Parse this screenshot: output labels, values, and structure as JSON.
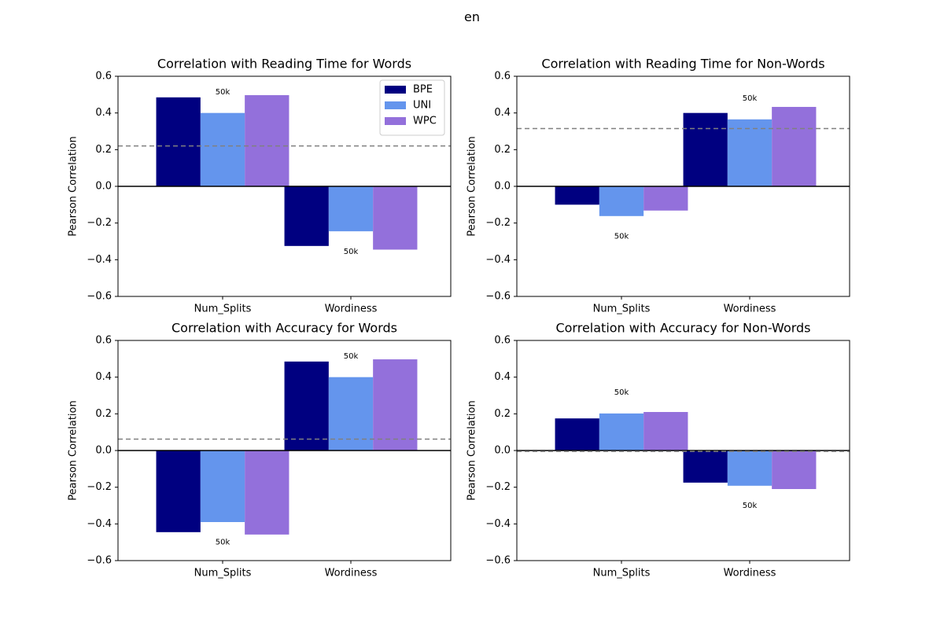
{
  "figure": {
    "suptitle": "en"
  },
  "chart_data": [
    {
      "type": "bar",
      "title": "Correlation with Reading Time for Words",
      "ylabel": "Pearson Correlation",
      "categories": [
        "Num_Splits",
        "Wordiness"
      ],
      "series": [
        {
          "name": "BPE",
          "values": [
            0.485,
            -0.325
          ]
        },
        {
          "name": "UNI",
          "values": [
            0.4,
            -0.245
          ]
        },
        {
          "name": "WPC",
          "values": [
            0.497,
            -0.345
          ]
        }
      ],
      "baseline": 0.22,
      "annotations": [
        {
          "text": "50k",
          "category": "Num_Splits",
          "y": 0.515
        },
        {
          "text": "50k",
          "category": "Wordiness",
          "y": -0.355
        }
      ],
      "ylim": [
        -0.6,
        0.6
      ],
      "yticks": [
        -0.6,
        -0.4,
        -0.2,
        0.0,
        0.2,
        0.4,
        0.6
      ],
      "ytick_labels": [
        "−0.6",
        "−0.4",
        "−0.2",
        "0.0",
        "0.2",
        "0.4",
        "0.6"
      ],
      "legend": "top-right"
    },
    {
      "type": "bar",
      "title": "Correlation with Reading Time for Non-Words",
      "ylabel": "Pearson Correlation",
      "categories": [
        "Num_Splits",
        "Wordiness"
      ],
      "series": [
        {
          "name": "BPE",
          "values": [
            -0.1,
            0.4
          ]
        },
        {
          "name": "UNI",
          "values": [
            -0.162,
            0.365
          ]
        },
        {
          "name": "WPC",
          "values": [
            -0.132,
            0.433
          ]
        }
      ],
      "baseline": 0.315,
      "annotations": [
        {
          "text": "50k",
          "category": "Num_Splits",
          "y": -0.272
        },
        {
          "text": "50k",
          "category": "Wordiness",
          "y": 0.48
        }
      ],
      "ylim": [
        -0.6,
        0.6
      ],
      "yticks": [
        -0.6,
        -0.4,
        -0.2,
        0.0,
        0.2,
        0.4,
        0.6
      ],
      "ytick_labels": [
        "−0.6",
        "−0.4",
        "−0.2",
        "0.0",
        "0.2",
        "0.4",
        "0.6"
      ],
      "legend": "none"
    },
    {
      "type": "bar",
      "title": "Correlation with Accuracy for Words",
      "ylabel": "Pearson Correlation",
      "categories": [
        "Num_Splits",
        "Wordiness"
      ],
      "series": [
        {
          "name": "BPE",
          "values": [
            -0.445,
            0.485
          ]
        },
        {
          "name": "UNI",
          "values": [
            -0.39,
            0.4
          ]
        },
        {
          "name": "WPC",
          "values": [
            -0.458,
            0.497
          ]
        }
      ],
      "baseline": 0.062,
      "annotations": [
        {
          "text": "50k",
          "category": "Num_Splits",
          "y": -0.5
        },
        {
          "text": "50k",
          "category": "Wordiness",
          "y": 0.515
        }
      ],
      "ylim": [
        -0.6,
        0.6
      ],
      "yticks": [
        -0.6,
        -0.4,
        -0.2,
        0.0,
        0.2,
        0.4,
        0.6
      ],
      "ytick_labels": [
        "−0.6",
        "−0.4",
        "−0.2",
        "0.0",
        "0.2",
        "0.4",
        "0.6"
      ],
      "legend": "none"
    },
    {
      "type": "bar",
      "title": "Correlation with Accuracy for Non-Words",
      "ylabel": "Pearson Correlation",
      "categories": [
        "Num_Splits",
        "Wordiness"
      ],
      "series": [
        {
          "name": "BPE",
          "values": [
            0.175,
            -0.175
          ]
        },
        {
          "name": "UNI",
          "values": [
            0.202,
            -0.192
          ]
        },
        {
          "name": "WPC",
          "values": [
            0.21,
            -0.21
          ]
        }
      ],
      "baseline": -0.005,
      "annotations": [
        {
          "text": "50k",
          "category": "Num_Splits",
          "y": 0.318
        },
        {
          "text": "50k",
          "category": "Wordiness",
          "y": -0.3
        }
      ],
      "ylim": [
        -0.6,
        0.6
      ],
      "yticks": [
        -0.6,
        -0.4,
        -0.2,
        0.0,
        0.2,
        0.4,
        0.6
      ],
      "ytick_labels": [
        "−0.6",
        "−0.4",
        "−0.2",
        "0.0",
        "0.2",
        "0.4",
        "0.6"
      ],
      "legend": "none"
    }
  ],
  "colors": {
    "series": [
      "#000080",
      "#6495ed",
      "#9370db"
    ],
    "baseline": "#808080",
    "zero_line": "#000000",
    "axes": "#000000"
  }
}
